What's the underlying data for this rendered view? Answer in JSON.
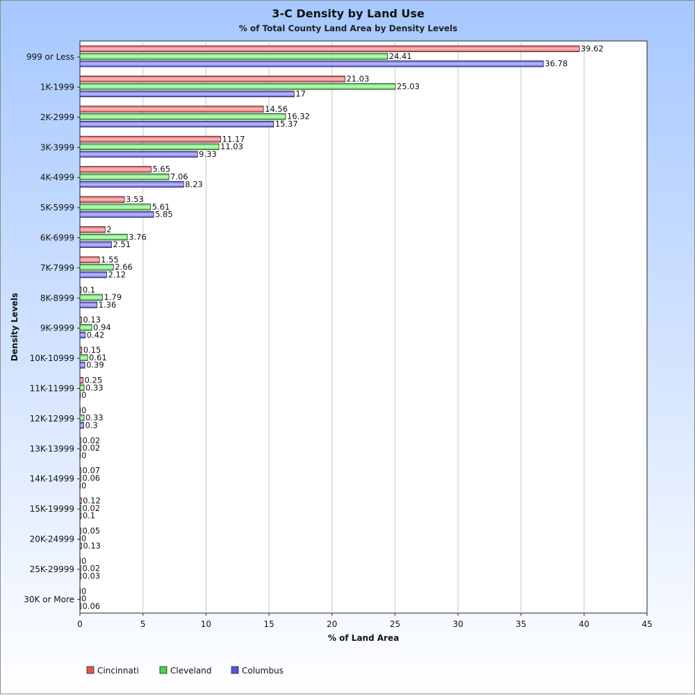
{
  "chart_data": {
    "type": "bar",
    "orientation": "horizontal",
    "title": "3-C Density by Land Use",
    "subtitle": "% of Total County Land Area by Density Levels",
    "xlabel": "% of Land Area",
    "ylabel": "Density Levels",
    "xlim": [
      0,
      45
    ],
    "xticks": [
      0,
      5,
      10,
      15,
      20,
      25,
      30,
      35,
      40,
      45
    ],
    "grid": "vertical",
    "legend_position": "bottom-left",
    "categories": [
      "999 or Less",
      "1K-1999",
      "2K-2999",
      "3K-3999",
      "4K-4999",
      "5K-5999",
      "6K-6999",
      "7K-7999",
      "8K-8999",
      "9K-9999",
      "10K-10999",
      "11K-11999",
      "12K-12999",
      "13K-13999",
      "14K-14999",
      "15K-19999",
      "20K-24999",
      "25K-29999",
      "30K or More"
    ],
    "series": [
      {
        "name": "Cincinnati",
        "color": "#e05555",
        "light": "#ffc4c4",
        "values": [
          39.62,
          21.03,
          14.56,
          11.17,
          5.65,
          3.53,
          2,
          1.55,
          0.1,
          0.13,
          0.15,
          0.25,
          0,
          0.02,
          0.07,
          0.12,
          0.05,
          0,
          0
        ]
      },
      {
        "name": "Cleveland",
        "color": "#4fcf4f",
        "light": "#c8ffc8",
        "values": [
          24.41,
          25.03,
          16.32,
          11.03,
          7.06,
          5.61,
          3.76,
          2.66,
          1.79,
          0.94,
          0.61,
          0.33,
          0.33,
          0.02,
          0.06,
          0.02,
          0,
          0.02,
          0
        ]
      },
      {
        "name": "Columbus",
        "color": "#5555e0",
        "light": "#c4c4ff",
        "values": [
          36.78,
          17,
          15.37,
          9.33,
          8.23,
          5.85,
          2.51,
          2.12,
          1.36,
          0.42,
          0.39,
          0,
          0.3,
          0,
          0,
          0.1,
          0.13,
          0.03,
          0.06
        ]
      }
    ]
  }
}
